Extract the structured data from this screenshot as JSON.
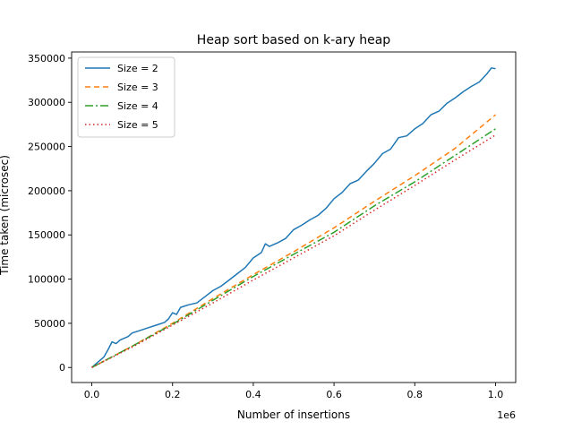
{
  "chart_data": {
    "type": "line",
    "title": "Heap sort based on k-ary heap",
    "xlabel": "Number of insertions",
    "ylabel": "Time taken (microsec)",
    "x_offset_label": "1e6",
    "xlim": [
      -0.05,
      1.05
    ],
    "ylim": [
      -17000,
      357000
    ],
    "xticks": [
      0.0,
      0.2,
      0.4,
      0.6,
      0.8,
      1.0
    ],
    "xtick_labels": [
      "0.0",
      "0.2",
      "0.4",
      "0.6",
      "0.8",
      "1.0"
    ],
    "yticks": [
      0,
      50000,
      100000,
      150000,
      200000,
      250000,
      300000,
      350000
    ],
    "ytick_labels": [
      "0",
      "50000",
      "100000",
      "150000",
      "200000",
      "250000",
      "300000",
      "350000"
    ],
    "grid": false,
    "legend_position": "upper-left",
    "series": [
      {
        "name": "Size = 2",
        "color": "#1f77b4",
        "dash": "solid",
        "points": [
          [
            0.0,
            0
          ],
          [
            0.02,
            8000
          ],
          [
            0.03,
            12000
          ],
          [
            0.04,
            20000
          ],
          [
            0.05,
            29000
          ],
          [
            0.06,
            27000
          ],
          [
            0.07,
            31000
          ],
          [
            0.09,
            35000
          ],
          [
            0.1,
            39000
          ],
          [
            0.12,
            42000
          ],
          [
            0.14,
            45000
          ],
          [
            0.16,
            48000
          ],
          [
            0.18,
            51000
          ],
          [
            0.19,
            55000
          ],
          [
            0.2,
            62000
          ],
          [
            0.21,
            60000
          ],
          [
            0.22,
            68000
          ],
          [
            0.24,
            71000
          ],
          [
            0.26,
            73000
          ],
          [
            0.28,
            80000
          ],
          [
            0.3,
            87000
          ],
          [
            0.32,
            92000
          ],
          [
            0.34,
            99000
          ],
          [
            0.36,
            106000
          ],
          [
            0.38,
            113000
          ],
          [
            0.4,
            124000
          ],
          [
            0.42,
            130000
          ],
          [
            0.43,
            140000
          ],
          [
            0.44,
            137000
          ],
          [
            0.46,
            141000
          ],
          [
            0.48,
            146000
          ],
          [
            0.5,
            156000
          ],
          [
            0.52,
            161000
          ],
          [
            0.54,
            167000
          ],
          [
            0.56,
            172000
          ],
          [
            0.58,
            180000
          ],
          [
            0.6,
            191000
          ],
          [
            0.62,
            198000
          ],
          [
            0.64,
            208000
          ],
          [
            0.66,
            212000
          ],
          [
            0.68,
            222000
          ],
          [
            0.7,
            231000
          ],
          [
            0.72,
            242000
          ],
          [
            0.74,
            247000
          ],
          [
            0.76,
            260000
          ],
          [
            0.78,
            262000
          ],
          [
            0.8,
            270000
          ],
          [
            0.82,
            276000
          ],
          [
            0.84,
            286000
          ],
          [
            0.86,
            290000
          ],
          [
            0.88,
            299000
          ],
          [
            0.9,
            305000
          ],
          [
            0.92,
            312000
          ],
          [
            0.94,
            318000
          ],
          [
            0.96,
            323000
          ],
          [
            0.98,
            333000
          ],
          [
            0.99,
            339000
          ],
          [
            1.0,
            338000
          ]
        ]
      },
      {
        "name": "Size = 3",
        "color": "#ff7f0e",
        "dash": "6,4",
        "points": [
          [
            0.0,
            0
          ],
          [
            0.1,
            24000
          ],
          [
            0.2,
            50000
          ],
          [
            0.3,
            78000
          ],
          [
            0.4,
            105000
          ],
          [
            0.5,
            131000
          ],
          [
            0.6,
            158000
          ],
          [
            0.7,
            188000
          ],
          [
            0.8,
            217000
          ],
          [
            0.9,
            248000
          ],
          [
            1.0,
            286000
          ]
        ]
      },
      {
        "name": "Size = 4",
        "color": "#2ca02c",
        "dash": "9,3,2,3",
        "points": [
          [
            0.0,
            0
          ],
          [
            0.1,
            24000
          ],
          [
            0.2,
            49000
          ],
          [
            0.3,
            76000
          ],
          [
            0.4,
            103000
          ],
          [
            0.5,
            128000
          ],
          [
            0.6,
            153000
          ],
          [
            0.7,
            183000
          ],
          [
            0.8,
            210000
          ],
          [
            0.9,
            240000
          ],
          [
            1.0,
            270000
          ]
        ]
      },
      {
        "name": "Size = 5",
        "color": "#d62728",
        "dash": "1.5,3",
        "points": [
          [
            0.0,
            0
          ],
          [
            0.1,
            23000
          ],
          [
            0.2,
            48000
          ],
          [
            0.3,
            73000
          ],
          [
            0.4,
            99000
          ],
          [
            0.5,
            124000
          ],
          [
            0.6,
            149000
          ],
          [
            0.7,
            178000
          ],
          [
            0.8,
            206000
          ],
          [
            0.9,
            235000
          ],
          [
            1.0,
            263000
          ]
        ]
      }
    ]
  }
}
